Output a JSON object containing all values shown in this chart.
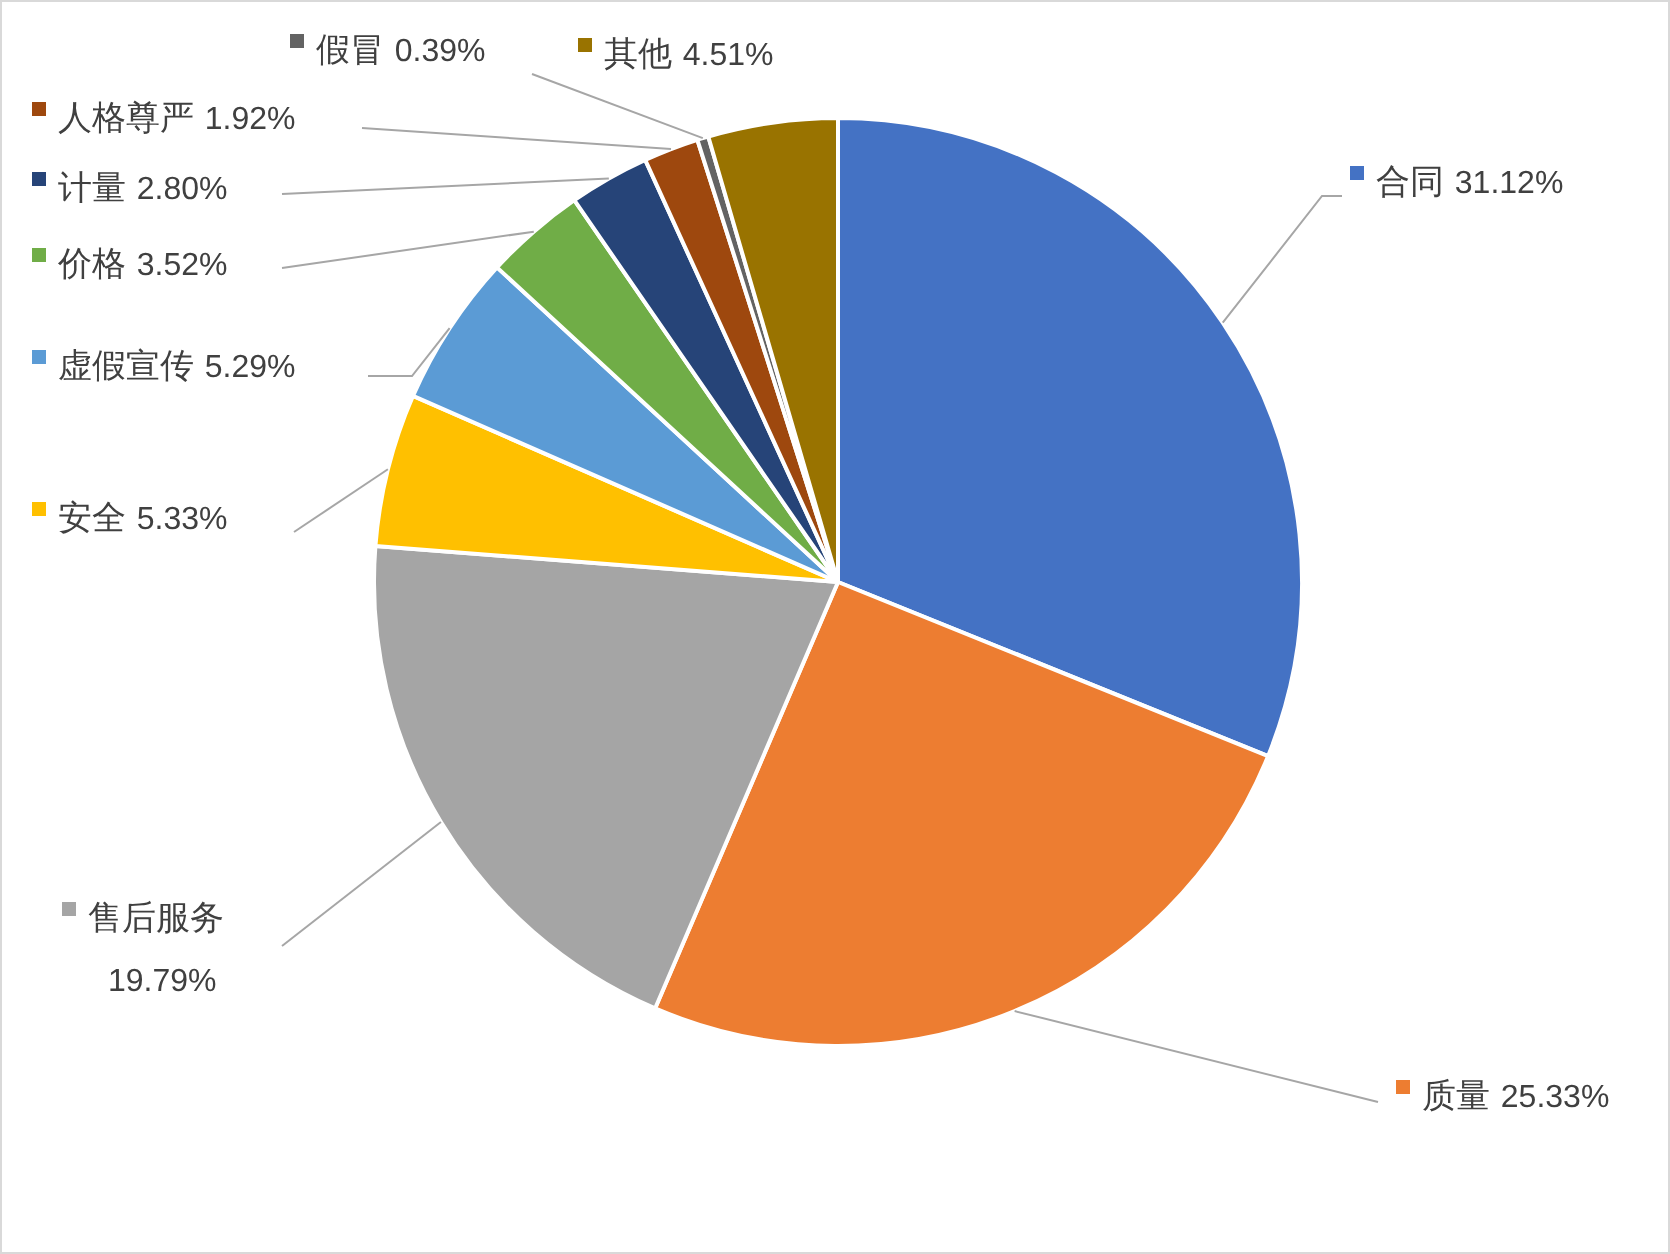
{
  "chart_data": {
    "type": "pie",
    "categories": [
      "合同",
      "质量",
      "售后服务",
      "安全",
      "虚假宣传",
      "价格",
      "计量",
      "人格尊严",
      "假冒",
      "其他"
    ],
    "values": [
      31.12,
      25.33,
      19.79,
      5.33,
      5.29,
      3.52,
      2.8,
      1.92,
      0.39,
      4.51
    ],
    "colors": [
      "#4472c4",
      "#ed7d31",
      "#a5a5a5",
      "#ffc000",
      "#5b9bd5",
      "#70ad47",
      "#264478",
      "#9e480e",
      "#636363",
      "#997300"
    ],
    "value_labels": [
      "31.12%",
      "25.33%",
      "19.79%",
      "5.33%",
      "5.29%",
      "3.52%",
      "2.80%",
      "1.92%",
      "0.39%",
      "4.51%"
    ],
    "legend": "left"
  }
}
